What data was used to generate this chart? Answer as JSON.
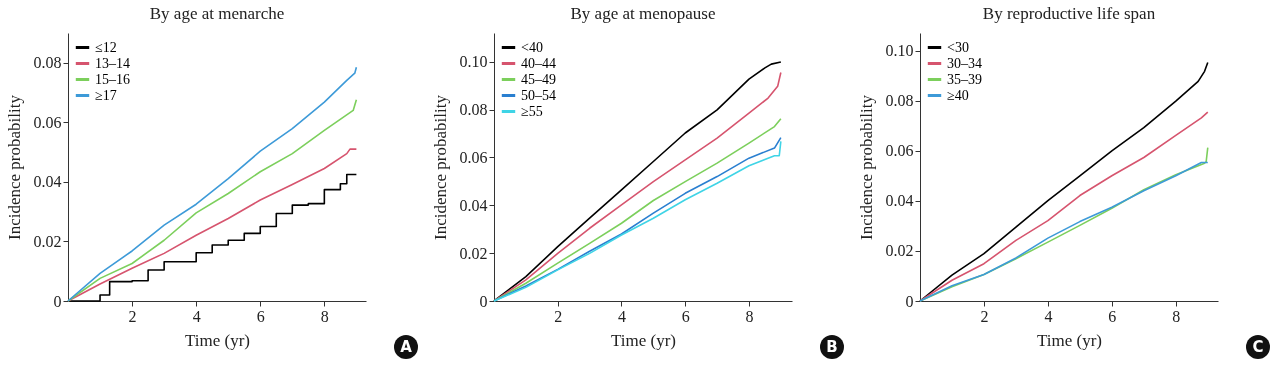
{
  "chart_data": [
    {
      "type": "line",
      "title": "By age at menarche",
      "xlabel": "Time (yr)",
      "ylabel": "Incidence probability",
      "annotations": [
        "A"
      ],
      "legend": "top left",
      "xlim": [
        0,
        9.3
      ],
      "xticks": [
        2,
        4,
        6,
        8
      ],
      "ylim": [
        0,
        0.09
      ],
      "yticks": [
        0,
        0.02,
        0.04,
        0.06,
        0.08
      ],
      "marker": "none",
      "line_style": "solid",
      "series": [
        {
          "name": "≤12",
          "color": "#000000",
          "type": "step",
          "x": [
            0,
            0.6,
            1,
            1.3,
            2,
            2.5,
            3,
            4,
            4.5,
            5,
            5.5,
            6,
            6.5,
            7,
            7.5,
            8,
            8.5,
            8.7,
            9
          ],
          "values": [
            0,
            0,
            0.002,
            0.0065,
            0.0068,
            0.0104,
            0.0132,
            0.0162,
            0.0188,
            0.0204,
            0.0227,
            0.025,
            0.0294,
            0.0322,
            0.0327,
            0.0374,
            0.0394,
            0.0425,
            0.0425
          ]
        },
        {
          "name": "13–14",
          "color": "#d6546e",
          "x": [
            0,
            1,
            2,
            3,
            4,
            5,
            6,
            7,
            8,
            8.7,
            8.8,
            9
          ],
          "values": [
            0,
            0.0057,
            0.011,
            0.016,
            0.0221,
            0.0277,
            0.0339,
            0.0391,
            0.0445,
            0.0495,
            0.051,
            0.051
          ]
        },
        {
          "name": "15–16",
          "color": "#7ccf5c",
          "x": [
            0,
            1,
            2,
            3,
            4,
            5,
            6,
            7,
            8,
            8.9,
            9
          ],
          "values": [
            0,
            0.0076,
            0.0126,
            0.0204,
            0.0296,
            0.0361,
            0.0434,
            0.0495,
            0.0573,
            0.064,
            0.0676
          ]
        },
        {
          "name": "≥17",
          "color": "#3d9ad8",
          "x": [
            0,
            1,
            2,
            3,
            4,
            5,
            6,
            7,
            8,
            8.7,
            8.95,
            9
          ],
          "values": [
            0,
            0.0093,
            0.0168,
            0.0255,
            0.0325,
            0.0411,
            0.0503,
            0.0579,
            0.0668,
            0.0741,
            0.0765,
            0.0785
          ]
        }
      ]
    },
    {
      "type": "line",
      "title": "By age at menopause",
      "xlabel": "Time (yr)",
      "ylabel": "Incidence probability",
      "annotations": [
        "B"
      ],
      "legend": "top left",
      "xlim": [
        0,
        9.35
      ],
      "xticks": [
        2,
        4,
        6,
        8
      ],
      "ylim": [
        0,
        0.112
      ],
      "yticks": [
        0,
        0.02,
        0.04,
        0.06,
        0.08,
        {
          "value": 0.1,
          "label": "0.10"
        }
      ],
      "marker": "none",
      "line_style": "solid",
      "series": [
        {
          "name": "<40",
          "color": "#000000",
          "x": [
            0,
            1,
            2,
            3,
            4,
            5,
            6,
            7,
            8,
            8.5,
            8.7,
            9
          ],
          "values": [
            0,
            0.0102,
            0.0227,
            0.0346,
            0.0464,
            0.0583,
            0.0702,
            0.0799,
            0.0927,
            0.0974,
            0.099,
            0.0999
          ]
        },
        {
          "name": "40–44",
          "color": "#d6546e",
          "x": [
            0,
            1,
            2,
            3,
            4,
            5,
            6,
            7,
            8,
            8.6,
            8.9,
            9
          ],
          "values": [
            0,
            0.0088,
            0.0199,
            0.0304,
            0.0402,
            0.0499,
            0.059,
            0.0681,
            0.0785,
            0.0848,
            0.0897,
            0.0955
          ]
        },
        {
          "name": "45–49",
          "color": "#7ccf5c",
          "x": [
            0,
            1,
            2,
            3,
            4,
            5,
            6,
            7,
            8,
            8.8,
            9
          ],
          "values": [
            0,
            0.0074,
            0.0158,
            0.0241,
            0.0325,
            0.042,
            0.0499,
            0.0576,
            0.066,
            0.0729,
            0.0762
          ]
        },
        {
          "name": "50–54",
          "color": "#2a7fd0",
          "x": [
            0,
            1,
            2,
            3,
            4,
            5,
            6,
            7,
            8,
            8.8,
            9
          ],
          "values": [
            0,
            0.0063,
            0.0132,
            0.0208,
            0.028,
            0.0367,
            0.045,
            0.052,
            0.0597,
            0.0639,
            0.0683
          ]
        },
        {
          "name": "≥55",
          "color": "#3fd4e6",
          "x": [
            0,
            1,
            2,
            3,
            4,
            5,
            6,
            7,
            8,
            8.8,
            8.95,
            9
          ],
          "values": [
            0,
            0.0057,
            0.013,
            0.0199,
            0.0276,
            0.0346,
            0.0423,
            0.0492,
            0.0565,
            0.0607,
            0.0607,
            0.0667
          ]
        }
      ]
    },
    {
      "type": "line",
      "title": "By reproductive life span",
      "xlabel": "Time (yr)",
      "ylabel": "Incidence probability",
      "annotations": [
        "C"
      ],
      "legend": "top left",
      "xlim": [
        0,
        9.32
      ],
      "xticks": [
        2,
        4,
        6,
        8
      ],
      "ylim": [
        0,
        0.107
      ],
      "yticks": [
        0,
        0.02,
        0.04,
        0.06,
        0.08,
        {
          "value": 0.1,
          "label": "0.10"
        }
      ],
      "marker": "none",
      "line_style": "solid",
      "series": [
        {
          "name": "<30",
          "color": "#000000",
          "x": [
            0,
            1,
            2,
            3,
            4,
            5,
            6,
            7,
            8,
            8.7,
            8.9,
            9
          ],
          "values": [
            0,
            0.0103,
            0.0189,
            0.0295,
            0.0401,
            0.05,
            0.0599,
            0.0692,
            0.0798,
            0.0877,
            0.0917,
            0.0952
          ]
        },
        {
          "name": "30–34",
          "color": "#d6546e",
          "x": [
            0,
            1,
            2,
            3,
            4,
            5,
            6,
            7,
            8,
            8.8,
            9
          ],
          "values": [
            0,
            0.0083,
            0.0149,
            0.0242,
            0.0321,
            0.0421,
            0.05,
            0.0573,
            0.0661,
            0.0731,
            0.0754
          ]
        },
        {
          "name": "35–39",
          "color": "#7ccf5c",
          "x": [
            0,
            1,
            2,
            3,
            4,
            5,
            6,
            7,
            8,
            8.9,
            8.95,
            9
          ],
          "values": [
            0,
            0.0057,
            0.0106,
            0.0169,
            0.0235,
            0.0302,
            0.037,
            0.0444,
            0.0504,
            0.055,
            0.0556,
            0.0612
          ]
        },
        {
          "name": "≥40",
          "color": "#3d9ad8",
          "x": [
            0,
            1,
            2,
            3,
            4,
            5,
            6,
            7,
            8,
            8.8,
            9
          ],
          "values": [
            0,
            0.0061,
            0.0106,
            0.0172,
            0.0251,
            0.0317,
            0.0374,
            0.044,
            0.05,
            0.0553,
            0.0553
          ]
        }
      ]
    }
  ]
}
